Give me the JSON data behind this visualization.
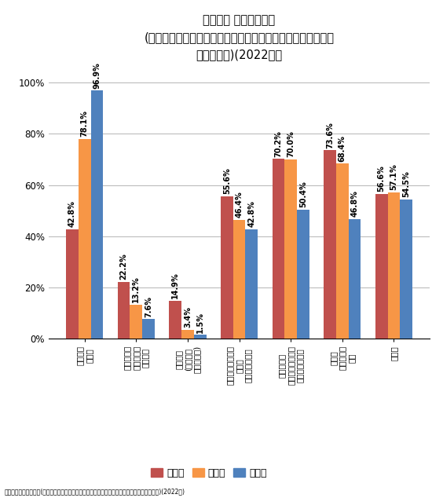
{
  "title_line1": "デジタル 機器利用状況",
  "title_line2": "(小中高校生、複数回答、該当機器でインターネットを利用、",
  "title_line3": "学校種類別)(2022年）",
  "categories": [
    "スマート\nフォン",
    "学校配布の\nタブレット\nパソコン",
    "携帯電話\n(スマート\nフォン以外)",
    "自宅用パソコン・\n自宅用\nタブレット端末",
    "学校配布・\n学校のパソコン・\nタブレット端末",
    "携帯用\nゲーム機・\n携帯",
    "テレビ"
  ],
  "shogakusei": [
    42.8,
    22.2,
    14.9,
    55.6,
    70.2,
    73.6,
    56.6
  ],
  "chugakusei": [
    78.1,
    13.2,
    3.4,
    46.4,
    70.0,
    68.4,
    57.1
  ],
  "kokoksei": [
    96.9,
    7.6,
    1.5,
    42.8,
    50.4,
    46.8,
    54.5
  ],
  "color_sho": "#C0504D",
  "color_chu": "#F79646",
  "color_kou": "#4F81BD",
  "legend_labels": [
    "小学生",
    "中学生",
    "高校生"
  ],
  "footer": "デジタル機器利用状況(小中高校生、複数回答、該当機器でインターネットを利用、学校種類別)(2022年)",
  "ylim_max": 107,
  "yticks": [
    0,
    20,
    40,
    60,
    80,
    100
  ],
  "ytick_labels": [
    "0%",
    "20%",
    "40%",
    "60%",
    "80%",
    "100%"
  ],
  "label_fontsize": 7.0,
  "title_fontsize": 10.5,
  "tick_fontsize": 8.5,
  "legend_fontsize": 9.0,
  "footer_fontsize": 5.5
}
